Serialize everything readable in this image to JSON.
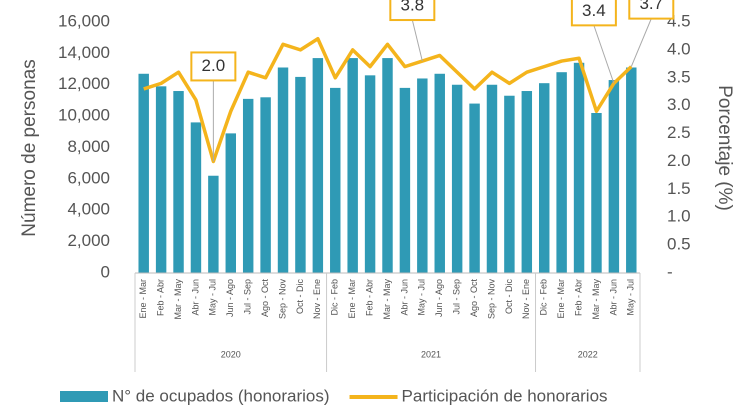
{
  "chart_data": {
    "type": "bar",
    "y_label": "Número de personas",
    "y2_label": "Porcentaje (%)",
    "categories": [
      "Ene - Mar",
      "Feb - Abr",
      "Mar - May",
      "Abr - Jun",
      "May - Jul",
      "Jun - Ago",
      "Jul - Sep",
      "Ago - Oct",
      "Sep - Nov",
      "Oct - Dic",
      "Nov - Ene",
      "Dic - Feb",
      "Ene - Mar",
      "Feb - Abr",
      "Mar - May",
      "Abr - Jun",
      "May - Jul",
      "Jun - Ago",
      "Jul - Sep",
      "Ago - Oct",
      "Sep - Nov",
      "Oct - Dic",
      "Nov - Ene",
      "Dic - Feb",
      "Ene - Mar",
      "Feb - Abr",
      "Mar - May",
      "Abr - Jun",
      "May - Jul"
    ],
    "groups": [
      {
        "label": "2020",
        "span": 11
      },
      {
        "label": "2021",
        "span": 12
      },
      {
        "label": "2022",
        "span": 6
      }
    ],
    "series": [
      {
        "name": "N° de ocupados (honorarios)",
        "type": "bar",
        "color": "#2f9ab5",
        "values": [
          12700,
          11900,
          11600,
          9600,
          6200,
          8900,
          11100,
          11200,
          13100,
          12500,
          13700,
          11800,
          13700,
          12600,
          13700,
          11800,
          12400,
          12700,
          12000,
          10800,
          12000,
          11300,
          11600,
          12100,
          12800,
          13400,
          10200,
          12300,
          13100
        ]
      },
      {
        "name": "Participación de honorarios",
        "type": "line",
        "axis": "y2",
        "color": "#f4b41c",
        "values": [
          3.3,
          3.4,
          3.6,
          3.1,
          2.0,
          2.9,
          3.6,
          3.5,
          4.1,
          4.0,
          4.2,
          3.5,
          4.0,
          3.7,
          4.1,
          3.7,
          3.8,
          3.9,
          3.6,
          3.3,
          3.6,
          3.4,
          3.6,
          3.7,
          3.8,
          3.85,
          2.9,
          3.4,
          3.7
        ],
        "value_labels": [
          null,
          null,
          null,
          null,
          "2.0",
          null,
          null,
          null,
          null,
          null,
          null,
          null,
          null,
          null,
          null,
          null,
          "3.8",
          null,
          null,
          null,
          null,
          null,
          null,
          null,
          null,
          null,
          null,
          "3.4",
          "3.7"
        ]
      }
    ],
    "ylim": [
      0,
      16000
    ],
    "yticks": [
      0,
      {
        "value": 2000,
        "label": "2,000"
      },
      {
        "value": 4000,
        "label": "4,000"
      },
      {
        "value": 6000,
        "label": "6,000"
      },
      {
        "value": 8000,
        "label": "8,000"
      },
      {
        "value": 10000,
        "label": "10,000"
      },
      {
        "value": 12000,
        "label": "12,000"
      },
      {
        "value": 14000,
        "label": "14,000"
      },
      {
        "value": 16000,
        "label": "16,000"
      }
    ],
    "y2lim": [
      0,
      4.5
    ],
    "y2ticks": [
      {
        "value": 0,
        "label": "-"
      },
      0.5,
      {
        "value": 1,
        "label": "1.0"
      },
      1.5,
      {
        "value": 2,
        "label": "2.0"
      },
      2.5,
      {
        "value": 3,
        "label": "3.0"
      },
      3.5,
      {
        "value": 4,
        "label": "4.0"
      },
      4.5
    ]
  }
}
